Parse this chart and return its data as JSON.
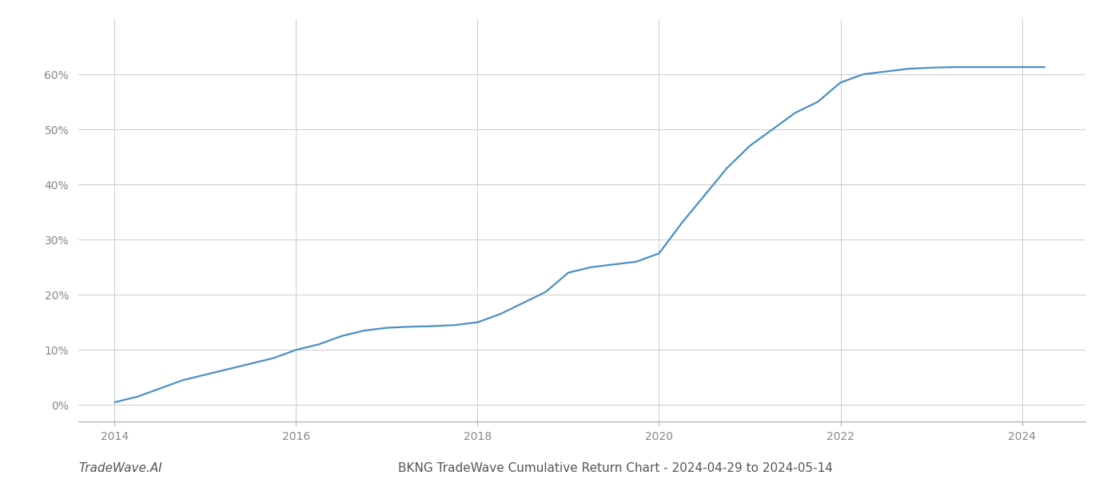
{
  "title": "BKNG TradeWave Cumulative Return Chart - 2024-04-29 to 2024-05-14",
  "watermark": "TradeWave.AI",
  "line_color": "#4a90c4",
  "background_color": "#ffffff",
  "grid_color": "#cccccc",
  "x_years": [
    2014.0,
    2014.25,
    2014.5,
    2014.75,
    2015.0,
    2015.25,
    2015.5,
    2015.75,
    2016.0,
    2016.25,
    2016.5,
    2016.75,
    2017.0,
    2017.25,
    2017.5,
    2017.75,
    2018.0,
    2018.25,
    2018.5,
    2018.75,
    2019.0,
    2019.25,
    2019.5,
    2019.75,
    2020.0,
    2020.25,
    2020.5,
    2020.75,
    2021.0,
    2021.25,
    2021.5,
    2021.75,
    2022.0,
    2022.25,
    2022.5,
    2022.75,
    2023.0,
    2023.25,
    2023.5,
    2023.75,
    2024.0,
    2024.25
  ],
  "y_values": [
    0.5,
    1.5,
    3.0,
    4.5,
    5.5,
    6.5,
    7.5,
    8.5,
    10.0,
    11.0,
    12.5,
    13.5,
    14.0,
    14.2,
    14.3,
    14.5,
    15.0,
    16.5,
    18.5,
    20.5,
    24.0,
    25.0,
    25.5,
    26.0,
    27.5,
    33.0,
    38.0,
    43.0,
    47.0,
    50.0,
    53.0,
    55.0,
    58.5,
    60.0,
    60.5,
    61.0,
    61.2,
    61.3,
    61.3,
    61.3,
    61.3,
    61.3
  ],
  "xlim": [
    2013.6,
    2024.7
  ],
  "ylim": [
    -3,
    70
  ],
  "yticks": [
    0,
    10,
    20,
    30,
    40,
    50,
    60
  ],
  "ytick_labels": [
    "0%",
    "10%",
    "20%",
    "30%",
    "40%",
    "50%",
    "60%"
  ],
  "xticks": [
    2014,
    2016,
    2018,
    2020,
    2022,
    2024
  ],
  "line_width": 1.6,
  "title_fontsize": 11,
  "watermark_fontsize": 11,
  "axis_fontsize": 10,
  "tick_color": "#999999",
  "label_color": "#888888"
}
